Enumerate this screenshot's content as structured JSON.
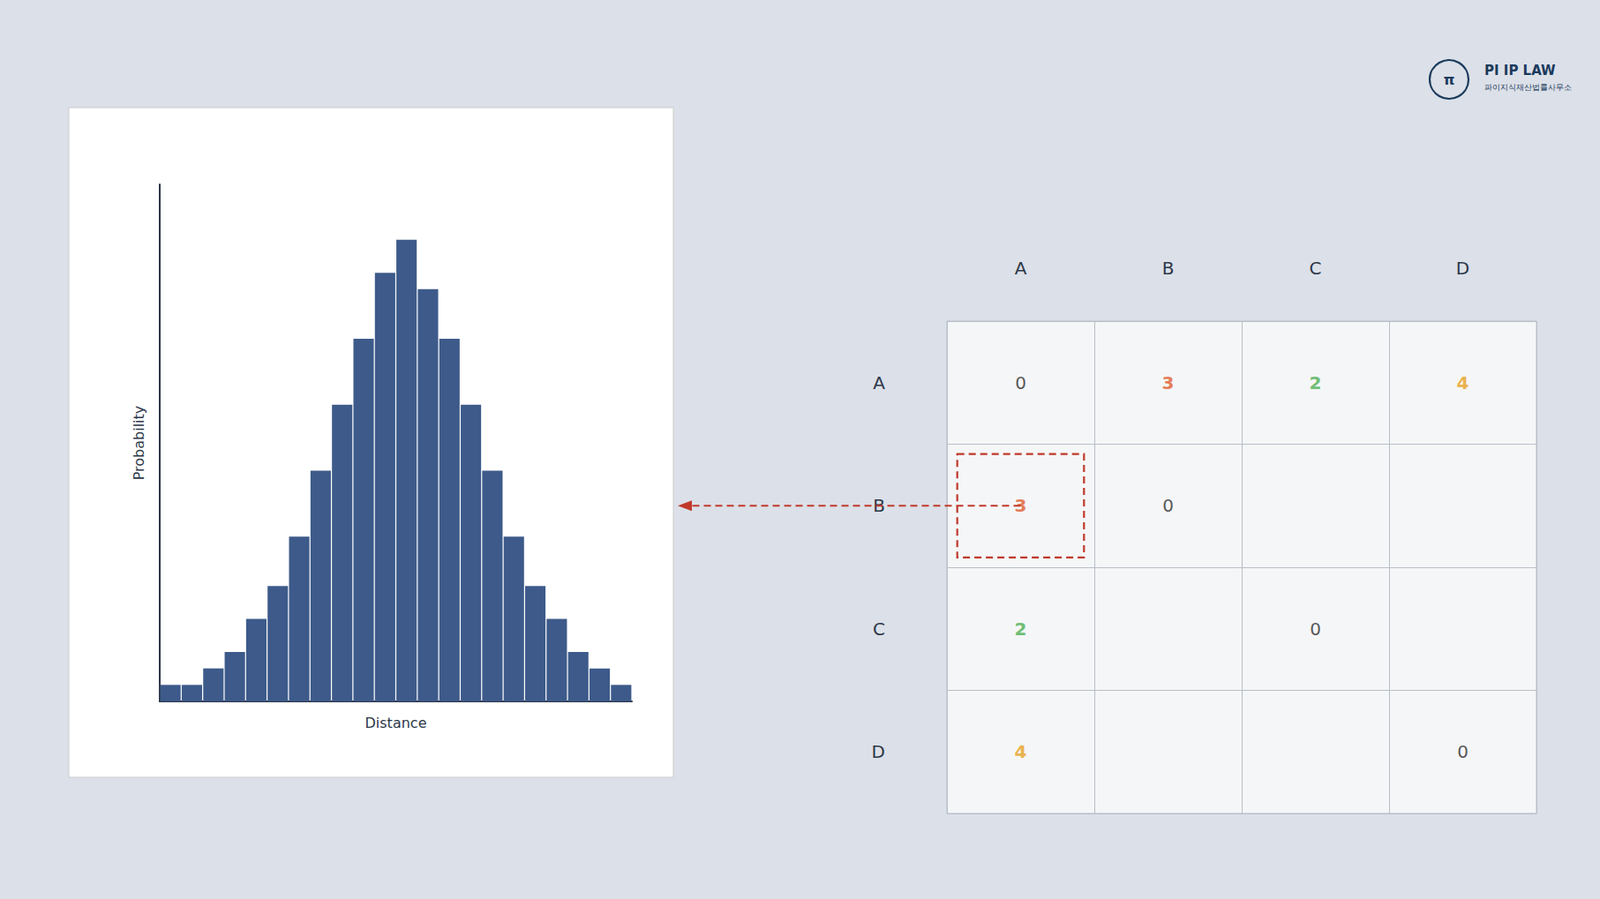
{
  "chart_data": [
    {
      "type": "bar",
      "categories": [
        null,
        null,
        null,
        null,
        null,
        null,
        null,
        null,
        null,
        null,
        null,
        null,
        null,
        null,
        null,
        null,
        null,
        null,
        null,
        null,
        null,
        null
      ],
      "values": [
        1,
        1,
        2,
        3,
        5,
        7,
        10,
        14,
        18,
        22,
        26,
        28,
        25,
        22,
        18,
        14,
        10,
        7,
        5,
        3,
        2,
        1
      ],
      "color": "#3d5a8a",
      "xlabel": "Distance",
      "ylabel": "Probability",
      "ylim": [
        0,
        31.36
      ],
      "tick_labels": false,
      "grid": false,
      "annotations": [
        "π",
        "PI IP LAW",
        "파이지식재산법률사무소"
      ]
    },
    {
      "type": "table",
      "categories": [
        "A",
        "B",
        "C",
        "D"
      ],
      "series": [
        {
          "name": "A",
          "values": [
            0,
            3,
            2,
            4
          ],
          "colors": [
            "#2d2d2d",
            "#e05c2e",
            "#4caf50",
            "#e8a020"
          ]
        },
        {
          "name": "B",
          "values": [
            3,
            0,
            null,
            null
          ],
          "colors": [
            "#e05c2e",
            "#2d2d2d",
            null,
            null
          ]
        },
        {
          "name": "C",
          "values": [
            2,
            null,
            0,
            null
          ],
          "colors": [
            "#4caf50",
            null,
            "#2d2d2d",
            null
          ]
        },
        {
          "name": "D",
          "values": [
            4,
            null,
            null,
            0
          ],
          "colors": [
            "#e8a020",
            null,
            null,
            "#2d2d2d"
          ]
        }
      ]
    }
  ]
}
